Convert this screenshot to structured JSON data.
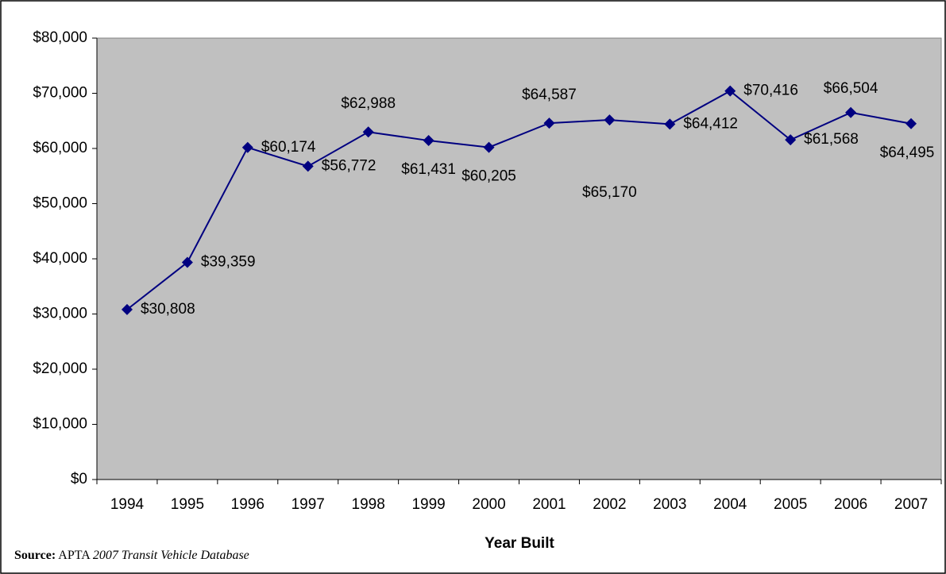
{
  "chart_data": {
    "type": "line",
    "x_label": "Year Built",
    "source": {
      "label": "Source:",
      "text": "APTA",
      "title": "2007 Transit Vehicle Database"
    },
    "categories": [
      "1994",
      "1995",
      "1996",
      "1997",
      "1998",
      "1999",
      "2000",
      "2001",
      "2002",
      "2003",
      "2004",
      "2005",
      "2006",
      "2007"
    ],
    "values": [
      30808,
      39359,
      60174,
      56772,
      62988,
      61431,
      60205,
      64587,
      65170,
      64412,
      70416,
      61568,
      66504,
      64495
    ],
    "value_labels": [
      "$30,808",
      "$39,359",
      "$60,174",
      "$56,772",
      "$62,988",
      "$61,431",
      "$60,205",
      "$64,587",
      "$65,170",
      "$64,412",
      "$70,416",
      "$61,568",
      "$66,504",
      "$64,495"
    ],
    "color": "#000080",
    "plot_background": "#c0c0c0",
    "ylim": [
      0,
      80000
    ],
    "yticks": [
      {
        "value": 0,
        "label": "$0"
      },
      {
        "value": 10000,
        "label": "$10,000"
      },
      {
        "value": 20000,
        "label": "$20,000"
      },
      {
        "value": 30000,
        "label": "$30,000"
      },
      {
        "value": 40000,
        "label": "$40,000"
      },
      {
        "value": 50000,
        "label": "$50,000"
      },
      {
        "value": 60000,
        "label": "$60,000"
      },
      {
        "value": 70000,
        "label": "$70,000"
      },
      {
        "value": 80000,
        "label": "$80,000"
      }
    ],
    "grid": false
  }
}
